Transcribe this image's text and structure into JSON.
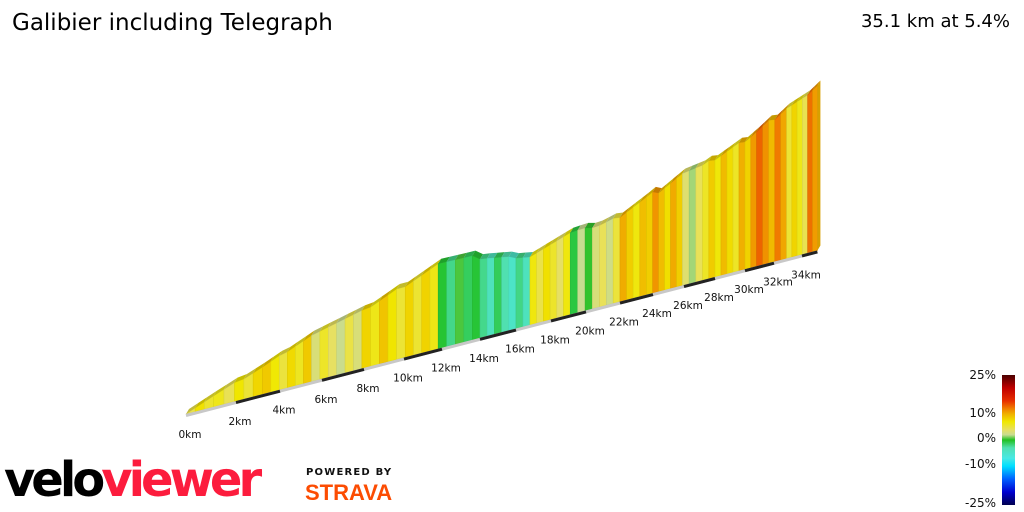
{
  "header": {
    "title": "Galibier including Telegraph",
    "summary": "35.1 km at 5.4%"
  },
  "chart_data": {
    "type": "area",
    "title": "Galibier including Telegraph",
    "subtitle": "35.1 km at 5.4%",
    "style": "3d elevation profile, colored by gradient",
    "x_unit": "km",
    "x_tick_labels": [
      "0km",
      "2km",
      "4km",
      "6km",
      "8km",
      "10km",
      "12km",
      "14km",
      "16km",
      "18km",
      "20km",
      "22km",
      "24km",
      "26km",
      "28km",
      "30km",
      "32km",
      "34km"
    ],
    "xlim": [
      0,
      35.1
    ],
    "distance_km": [
      0,
      1.1,
      3.2,
      5.5,
      7.9,
      10.5,
      11.8,
      13.6,
      14.4,
      16.8,
      19.1,
      20.8,
      22.0,
      23.6,
      25.9,
      27.2,
      29.6,
      30.8,
      32.9,
      34.4,
      35.1
    ],
    "elevation_m": [
      710,
      781,
      911,
      1069,
      1163,
      1349,
      1443,
      1436,
      1418,
      1346,
      1476,
      1495,
      1546,
      1680,
      1894,
      1926,
      2109,
      2229,
      2466,
      2560,
      2642
    ],
    "color_scale": {
      "labels": [
        "25%",
        "10%",
        "0%",
        "-10%",
        "-25%"
      ],
      "stops": [
        {
          "grade": 25,
          "color": "#4a0000"
        },
        {
          "grade": 20,
          "color": "#c00000"
        },
        {
          "grade": 15,
          "color": "#e83000"
        },
        {
          "grade": 12,
          "color": "#f08000"
        },
        {
          "grade": 10,
          "color": "#f0b000"
        },
        {
          "grade": 7,
          "color": "#f0e800"
        },
        {
          "grade": 4,
          "color": "#e8e060"
        },
        {
          "grade": 2,
          "color": "#c8dc90"
        },
        {
          "grade": 0,
          "color": "#20c020"
        },
        {
          "grade": -3,
          "color": "#50e0b0"
        },
        {
          "grade": -7,
          "color": "#48e8e4"
        },
        {
          "grade": -10,
          "color": "#00e0ff"
        },
        {
          "grade": -15,
          "color": "#0060ff"
        },
        {
          "grade": -20,
          "color": "#0000d0"
        },
        {
          "grade": -25,
          "color": "#000050"
        }
      ]
    },
    "grid": false,
    "legend": "bottom-right"
  },
  "branding": {
    "logo_part1": "velo",
    "logo_part2": "viewer",
    "powered_by": "POWERED BY",
    "strava": "STRAVA",
    "logo_colors": {
      "velo": "#000000",
      "viewer": "#fc1c3d",
      "strava": "#fc4c02"
    }
  }
}
